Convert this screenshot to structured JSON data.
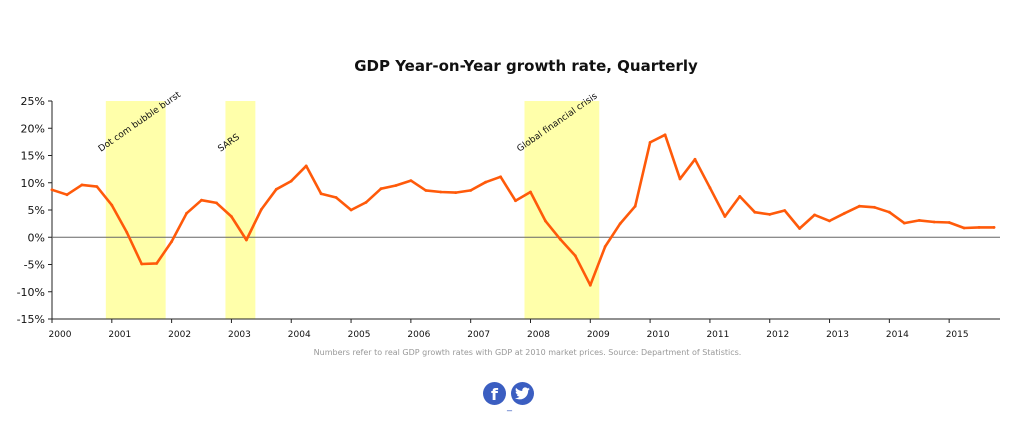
{
  "chart_data": {
    "type": "line",
    "title": "GDP Year-on-Year growth rate, Quarterly",
    "xlabel": "",
    "ylabel": "",
    "ylim": [
      -15,
      25
    ],
    "xlim": [
      2000,
      2015.85
    ],
    "y_ticks": [
      "25%",
      "20%",
      "15%",
      "10%",
      "5%",
      "0%",
      "-5%",
      "-10%",
      "-15%"
    ],
    "x_ticks": [
      "2000",
      "2001",
      "2002",
      "2003",
      "2004",
      "2005",
      "2006",
      "2007",
      "2008",
      "2009",
      "2010",
      "2011",
      "2012",
      "2013",
      "2014",
      "2015"
    ],
    "series_color": "#ff5a0a",
    "band_color": "#ffffaa",
    "grid": false,
    "annotations": [
      {
        "label": "Dot com bubble burst",
        "x_start": 2000.9,
        "x_end": 2001.9
      },
      {
        "label": "SARS",
        "x_start": 2002.9,
        "x_end": 2003.4
      },
      {
        "label": "Global financial crisis",
        "x_start": 2007.9,
        "x_end": 2009.15
      }
    ],
    "series": [
      {
        "x": [
          2000.0,
          2000.25,
          2000.5,
          2000.75,
          2001.0,
          2001.25,
          2001.5,
          2001.75,
          2002.0,
          2002.25,
          2002.5,
          2002.75,
          2003.0,
          2003.25,
          2003.5,
          2003.75,
          2004.0,
          2004.25,
          2004.5,
          2004.75,
          2005.0,
          2005.25,
          2005.5,
          2005.75,
          2006.0,
          2006.25,
          2006.5,
          2006.75,
          2007.0,
          2007.25,
          2007.5,
          2007.75,
          2008.0,
          2008.25,
          2008.5,
          2008.75,
          2009.0,
          2009.25,
          2009.5,
          2009.75,
          2010.0,
          2010.25,
          2010.5,
          2010.75,
          2011.0,
          2011.25,
          2011.5,
          2011.75,
          2012.0,
          2012.25,
          2012.5,
          2012.75,
          2013.0,
          2013.25,
          2013.5,
          2013.75,
          2014.0,
          2014.25,
          2014.5,
          2014.75,
          2015.0,
          2015.25,
          2015.5,
          2015.75
        ],
        "values": [
          8.7,
          7.8,
          9.6,
          9.3,
          5.9,
          0.9,
          -4.9,
          -4.8,
          -0.8,
          4.4,
          6.8,
          6.3,
          3.8,
          -0.5,
          5.1,
          8.8,
          10.3,
          13.1,
          8.0,
          7.3,
          5.0,
          6.4,
          8.9,
          9.5,
          10.4,
          8.6,
          8.3,
          8.2,
          8.6,
          10.1,
          11.1,
          6.7,
          8.3,
          3.0,
          -0.4,
          -3.4,
          -8.8,
          -1.7,
          2.5,
          5.7,
          17.4,
          18.8,
          10.7,
          14.3,
          9.1,
          3.8,
          7.5,
          4.6,
          4.2,
          4.9,
          1.6,
          4.1,
          3.0,
          4.4,
          5.7,
          5.5,
          4.6,
          2.6,
          3.1,
          2.8,
          2.7,
          1.7,
          1.8,
          1.8
        ]
      }
    ]
  },
  "footer": {
    "source_note": "Numbers refer to real GDP growth rates with GDP at 2010 market prices. Source: Department of Statistics.",
    "facebook_icon": "facebook-icon",
    "twitter_icon": "twitter-icon",
    "facebook_glyph": "f",
    "link_underscore": "_"
  }
}
